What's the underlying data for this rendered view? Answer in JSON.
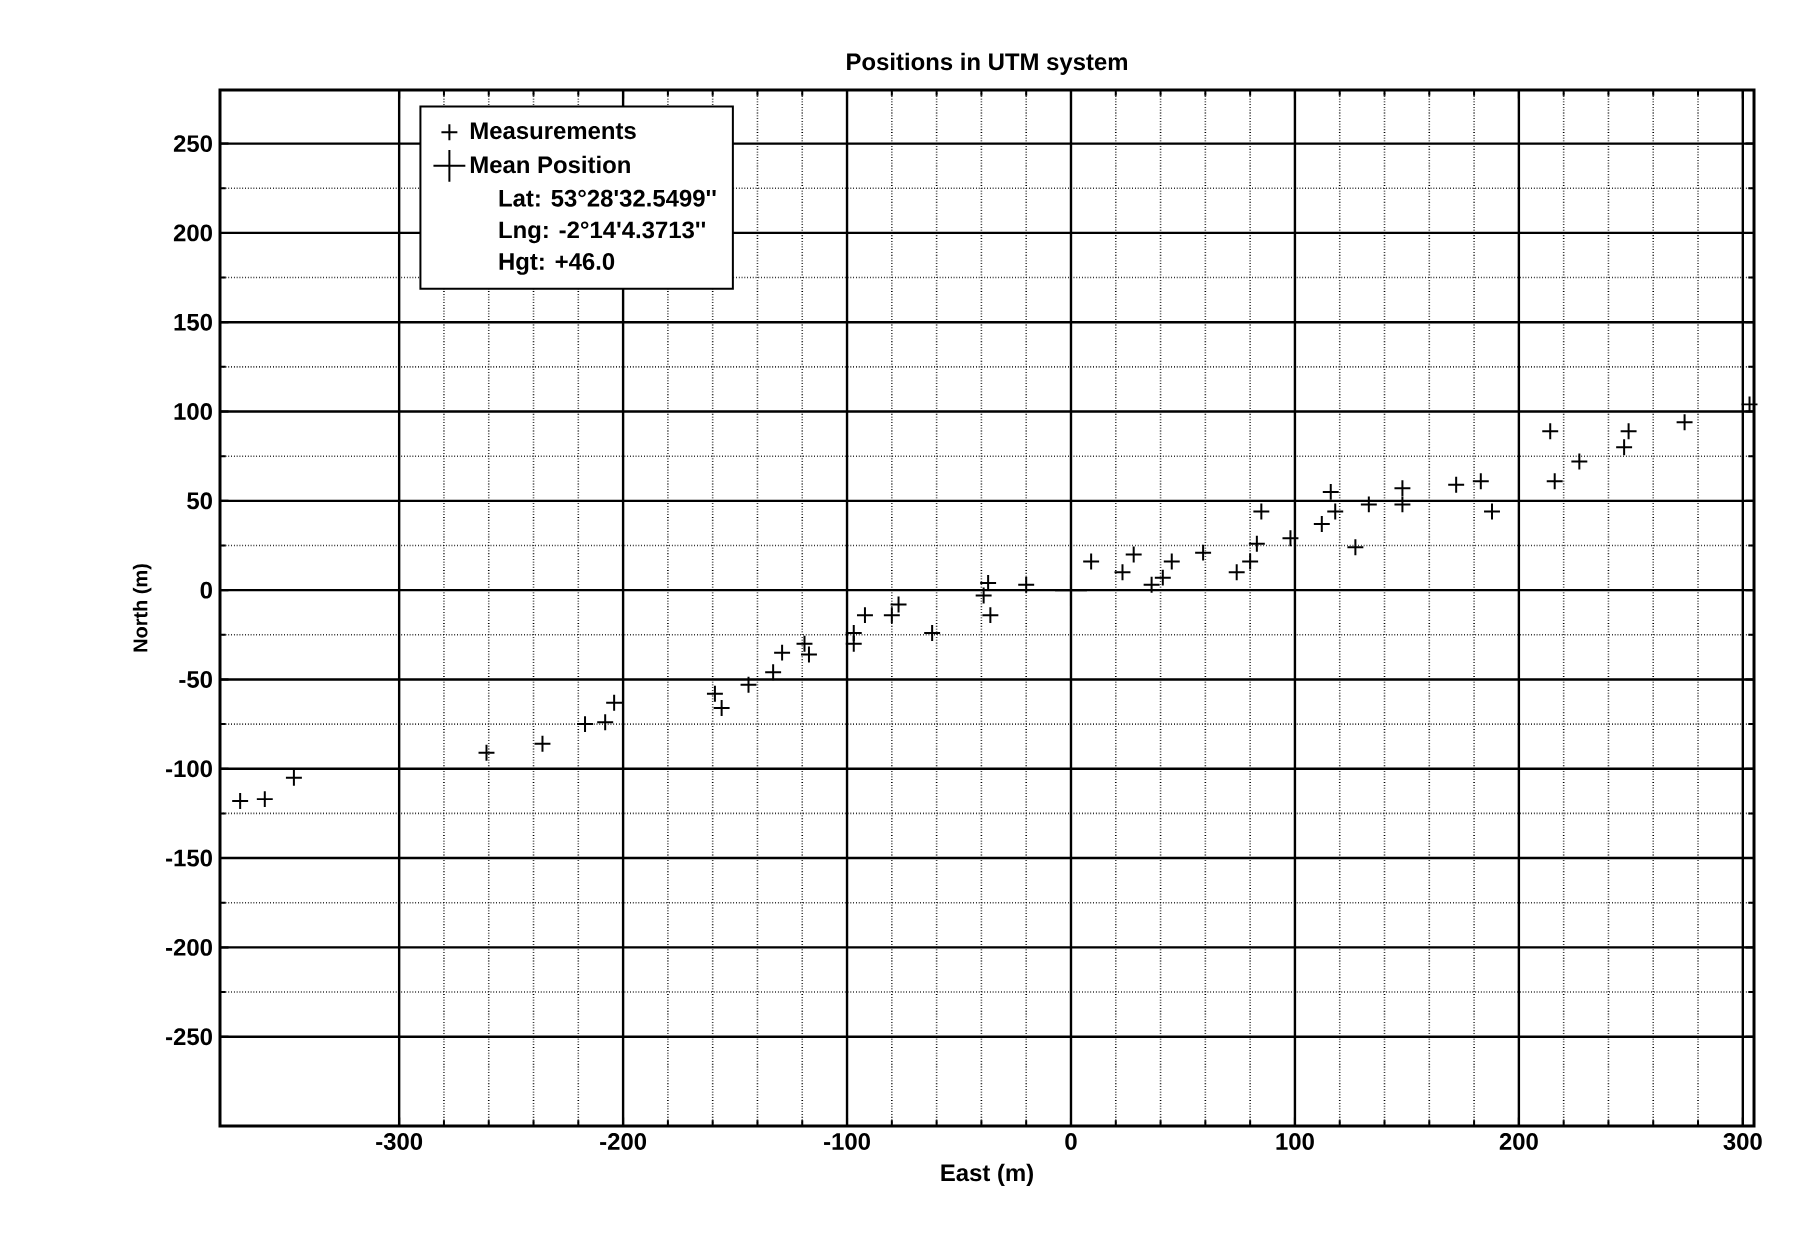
{
  "chart_data": {
    "type": "scatter",
    "title": "Positions in UTM system",
    "xlabel": "East (m)",
    "ylabel": "North (m)",
    "annotations": [
      "Lat: 53°28'32.5499''",
      "Lng: -2°14'4.3713''",
      "Hgt: +46.0"
    ],
    "xlim": [
      -380,
      305
    ],
    "ylim": [
      -300,
      280
    ],
    "xticks": [
      -300,
      -200,
      -100,
      0,
      100,
      200,
      300
    ],
    "yticks": [
      -250,
      -200,
      -150,
      -100,
      -50,
      0,
      50,
      100,
      150,
      200,
      250
    ],
    "grid": true,
    "legend": "top left",
    "marker": "cross",
    "series": [
      {
        "name": "Measurements",
        "color": "#000000",
        "x": [
          -371,
          -360,
          -347,
          -261,
          -236,
          -217,
          -208,
          -204,
          -159,
          -156,
          -144,
          -133,
          -129,
          -117,
          -119,
          -97,
          -97,
          -92,
          -80,
          -77,
          -62,
          -37,
          -36,
          -39,
          -20,
          9,
          28,
          23,
          36,
          45,
          41,
          59,
          74,
          83,
          85,
          80,
          98,
          116,
          118,
          112,
          127,
          133,
          148,
          148,
          172,
          183,
          188,
          214,
          227,
          216,
          249,
          247,
          274,
          303
        ],
        "values": [
          -118,
          -117,
          -105,
          -91,
          -86,
          -75,
          -74,
          -63,
          -58,
          -66,
          -53,
          -46,
          -35,
          -36,
          -30,
          -24,
          -30,
          -14,
          -14,
          -8,
          -24,
          4,
          -14,
          -3,
          3,
          16,
          20,
          10,
          3,
          16,
          7,
          21,
          10,
          26,
          44,
          16,
          29,
          55,
          44,
          37,
          24,
          48,
          57,
          48,
          59,
          61,
          44,
          89,
          72,
          61,
          89,
          80,
          94,
          104
        ]
      },
      {
        "name": "Mean Position",
        "color": "#000000",
        "x": [
          0
        ],
        "values": [
          0
        ]
      }
    ]
  }
}
